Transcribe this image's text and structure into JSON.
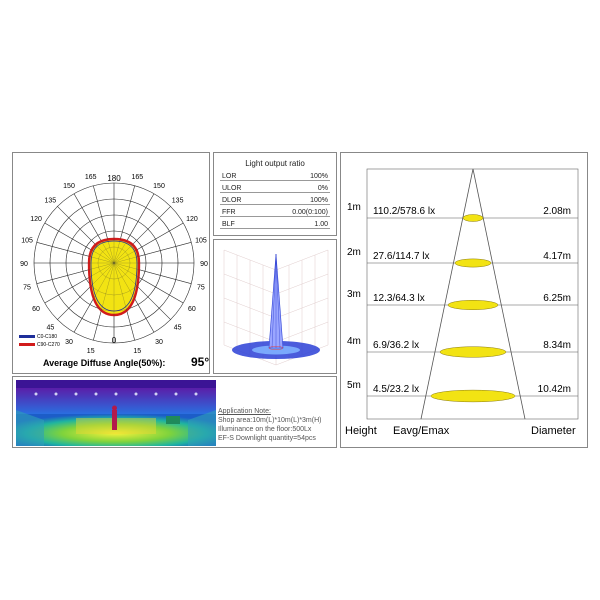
{
  "polar": {
    "angle_labels_left": [
      "165",
      "150",
      "135",
      "120",
      "105",
      "90",
      "75",
      "60",
      "45",
      "30",
      "15"
    ],
    "angle_labels_right": [
      "165",
      "150",
      "135",
      "120",
      "105",
      "90",
      "75",
      "60",
      "45",
      "30",
      "15"
    ],
    "label_top": "180",
    "label_bottom": "0",
    "legend": [
      "C0-C180",
      "C90-C270"
    ],
    "legend_colors": [
      "#1e2f9a",
      "#d11b1b"
    ],
    "fill_color": "#f2e313",
    "caption_label": "Average Diffuse Angle(50%):",
    "caption_value": "95°"
  },
  "lor": {
    "title": "Light output ratio",
    "rows": [
      {
        "label": "LOR",
        "value": "100%"
      },
      {
        "label": "ULOR",
        "value": "0%"
      },
      {
        "label": "DLOR",
        "value": "100%"
      },
      {
        "label": "FFR",
        "value": "0.00(0:100)"
      },
      {
        "label": "BLF",
        "value": "1.00"
      }
    ]
  },
  "application": {
    "heading": "Application Note:",
    "line1": "Shop area:10m(L)*10m(L)*3m(H)",
    "line2": "Illuminance on the floor:500Lx",
    "line3": "EF-S Downlight quantity=54pcs"
  },
  "cone": {
    "rows": [
      {
        "height": "1m",
        "value": "110.2/578.6 lx",
        "diameter": "2.08m"
      },
      {
        "height": "2m",
        "value": "27.6/114.7 lx",
        "diameter": "4.17m"
      },
      {
        "height": "3m",
        "value": "12.3/64.3 lx",
        "diameter": "6.25m"
      },
      {
        "height": "4m",
        "value": "6.9/36.2 lx",
        "diameter": "8.34m"
      },
      {
        "height": "5m",
        "value": "4.5/23.2 lx",
        "diameter": "10.42m"
      }
    ],
    "footer_height": "Height",
    "footer_eavg": "Eavg/Emax",
    "footer_diameter": "Diameter",
    "ellipse_color": "#f2e313"
  }
}
